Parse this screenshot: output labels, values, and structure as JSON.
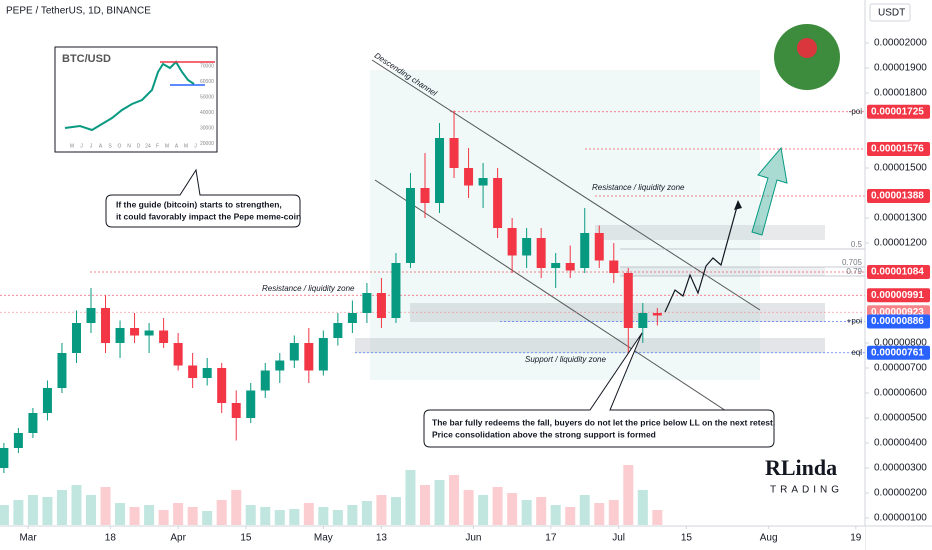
{
  "title": "PEPE / TetherUS, 1D, BINANCE",
  "currency": "USDT",
  "chart_data": {
    "type": "candlestick",
    "up_color": "#089981",
    "down_color": "#f23645",
    "x": [
      -5,
      -2,
      1,
      4,
      7,
      10,
      13,
      16,
      19,
      22,
      25,
      28,
      31,
      34,
      37,
      40,
      43,
      46,
      49,
      52,
      55,
      58,
      61,
      64,
      67,
      70,
      73,
      76,
      79,
      82,
      85,
      88,
      91,
      94,
      97,
      100,
      103,
      106,
      109,
      112,
      115,
      118,
      121,
      124,
      127,
      130
    ],
    "open": [
      3e-06,
      3.8e-06,
      4.4e-06,
      5.2e-06,
      6.2e-06,
      7.6e-06,
      8.8e-06,
      9.4e-06,
      8e-06,
      8.6e-06,
      8.3e-06,
      8.5e-06,
      8e-06,
      7.1e-06,
      6.6e-06,
      7e-06,
      5.6e-06,
      5e-06,
      6.1e-06,
      6.9e-06,
      7.3e-06,
      8e-06,
      6.9e-06,
      8.2e-06,
      8.8e-06,
      9.2e-06,
      1e-05,
      9e-06,
      1.12e-05,
      1.42e-05,
      1.36e-05,
      1.62e-05,
      1.5e-05,
      1.43e-05,
      1.46e-05,
      1.26e-05,
      1.15e-05,
      1.22e-05,
      1.1e-05,
      1.12e-05,
      1.1e-05,
      1.24e-05,
      1.13e-05,
      1.08e-05,
      8.6e-06,
      9.2e-06
    ],
    "high": [
      4e-06,
      4.6e-06,
      5.4e-06,
      6.5e-06,
      8e-06,
      9.3e-06,
      1.02e-05,
      9.9e-06,
      8.9e-06,
      9.2e-06,
      8.8e-06,
      9e-06,
      8.4e-06,
      7.6e-06,
      7.4e-06,
      7.2e-06,
      6.1e-06,
      6.4e-06,
      7.2e-06,
      7.6e-06,
      8.3e-06,
      8.6e-06,
      8.5e-06,
      9.2e-06,
      9.7e-06,
      1.04e-05,
      1.06e-05,
      1.16e-05,
      1.48e-05,
      1.56e-05,
      1.68e-05,
      1.73e-05,
      1.58e-05,
      1.52e-05,
      1.5e-05,
      1.3e-05,
      1.26e-05,
      1.26e-05,
      1.16e-05,
      1.19e-05,
      1.34e-05,
      1.27e-05,
      1.2e-05,
      1.1e-05,
      9.6e-06,
      9.4e-06
    ],
    "low": [
      2.8e-06,
      3.6e-06,
      4.2e-06,
      4.9e-06,
      6e-06,
      7.2e-06,
      8.4e-06,
      7.6e-06,
      7.4e-06,
      8e-06,
      7.6e-06,
      7.8e-06,
      6.9e-06,
      6.2e-06,
      6.3e-06,
      5.2e-06,
      4.1e-06,
      4.8e-06,
      5.8e-06,
      6.4e-06,
      7e-06,
      6.4e-06,
      6.7e-06,
      7.9e-06,
      8.4e-06,
      8.8e-06,
      8.6e-06,
      8.8e-06,
      1.1e-05,
      1.3e-05,
      1.32e-05,
      1.46e-05,
      1.38e-05,
      1.34e-05,
      1.22e-05,
      1.08e-05,
      1.1e-05,
      1.06e-05,
      1.02e-05,
      1.06e-05,
      1.08e-05,
      1.1e-05,
      1.04e-05,
      7.6e-06,
      8e-06,
      8.7e-06
    ],
    "close": [
      3.8e-06,
      4.4e-06,
      5.2e-06,
      6.2e-06,
      7.6e-06,
      8.8e-06,
      9.4e-06,
      8e-06,
      8.6e-06,
      8.3e-06,
      8.5e-06,
      8e-06,
      7.1e-06,
      6.6e-06,
      7e-06,
      5.6e-06,
      5e-06,
      6.1e-06,
      6.9e-06,
      7.3e-06,
      8e-06,
      6.9e-06,
      8.2e-06,
      8.8e-06,
      9.2e-06,
      1e-05,
      9e-06,
      1.12e-05,
      1.42e-05,
      1.36e-05,
      1.62e-05,
      1.5e-05,
      1.43e-05,
      1.46e-05,
      1.26e-05,
      1.15e-05,
      1.22e-05,
      1.1e-05,
      1.12e-05,
      1.09e-05,
      1.24e-05,
      1.13e-05,
      1.08e-05,
      8.6e-06,
      9.2e-06,
      9.1e-06
    ],
    "volume": [
      20,
      25,
      30,
      28,
      35,
      40,
      30,
      38,
      22,
      18,
      20,
      15,
      22,
      18,
      14,
      25,
      35,
      20,
      18,
      15,
      16,
      22,
      18,
      15,
      20,
      24,
      30,
      28,
      55,
      40,
      45,
      50,
      35,
      30,
      38,
      32,
      25,
      28,
      20,
      18,
      30,
      22,
      25,
      60,
      35,
      15
    ],
    "xlim": [
      -5.8,
      172.9
    ],
    "xticks": [
      {
        "value": 0,
        "label": "Mar"
      },
      {
        "value": 17,
        "label": "18"
      },
      {
        "value": 31,
        "label": "Apr"
      },
      {
        "value": 45,
        "label": "15"
      },
      {
        "value": 61,
        "label": "May"
      },
      {
        "value": 73,
        "label": "13"
      },
      {
        "value": 92,
        "label": "Jun"
      },
      {
        "value": 108,
        "label": "17"
      },
      {
        "value": 122,
        "label": "Jul"
      },
      {
        "value": 136,
        "label": "15"
      },
      {
        "value": 153,
        "label": "Aug"
      },
      {
        "value": 171,
        "label": "19"
      }
    ],
    "ylim": [
      7.2e-07,
      2.172e-05
    ],
    "yticks": [
      {
        "value": 2e-05,
        "label": "0.00002000"
      },
      {
        "value": 1.9e-05,
        "label": "0.00001900"
      },
      {
        "value": 1.8e-05,
        "label": "0.00001800"
      },
      {
        "value": 1.5e-05,
        "label": "0.00001500"
      },
      {
        "value": 1.3e-05,
        "label": "0.00001300"
      },
      {
        "value": 1.2e-05,
        "label": "0.00001200"
      },
      {
        "value": 8e-06,
        "label": "0.00000800"
      },
      {
        "value": 7e-06,
        "label": "0.00000700"
      },
      {
        "value": 6e-06,
        "label": "0.00000600"
      },
      {
        "value": 5e-06,
        "label": "0.00000500"
      },
      {
        "value": 4e-06,
        "label": "0.00000400"
      },
      {
        "value": 3e-06,
        "label": "0.00000300"
      },
      {
        "value": 2e-06,
        "label": "0.00000200"
      },
      {
        "value": 1e-06,
        "label": "0.00000100"
      }
    ],
    "levels": [
      {
        "value": 1.725e-05,
        "color": "#f23645",
        "tag": "-poi"
      },
      {
        "value": 1.576e-05,
        "color": "#f23645"
      },
      {
        "value": 1.388e-05,
        "color": "#f23645"
      },
      {
        "value": 1.084e-05,
        "color": "#f23645"
      },
      {
        "value": 9.91e-06,
        "color": "#f23645"
      },
      {
        "value": 9.23e-06,
        "color": "#f7838a"
      },
      {
        "value": 8.86e-06,
        "color": "#2962ff",
        "tag": "+poi"
      },
      {
        "value": 7.61e-06,
        "color": "#2962ff",
        "tag": "eql"
      }
    ],
    "fib_levels": [
      {
        "value": 1.176e-05,
        "label": "0.5"
      },
      {
        "value": 1.104e-05,
        "label": "0.705"
      },
      {
        "value": 1.068e-05,
        "label": "0.79"
      }
    ]
  },
  "annotations": {
    "channel": "Descending channel",
    "resistance_top": "Resistance / liquidity zone",
    "resistance_left": "Resistance / liquidity zone",
    "support": "Support / liquidity zone",
    "callout_btc": [
      "If the guide (bitcoin) starts to strengthen,",
      "it could favorably impact the Pepe meme-coin"
    ],
    "callout_bar": [
      "The bar fully redeems the fall, buyers do not let the price below LL on the next retest.",
      "Price consolidation above the strong support is formed"
    ]
  },
  "inset": {
    "title": "BTC/USD",
    "months": [
      "M",
      "J",
      "J",
      "A",
      "S",
      "O",
      "N",
      "D",
      "24",
      "F",
      "M",
      "A",
      "M",
      "J"
    ],
    "prices": [
      70000,
      60000,
      50000,
      40000,
      30000,
      20000
    ]
  },
  "logo": {
    "name": "RLinda",
    "sub": "TRADING"
  }
}
